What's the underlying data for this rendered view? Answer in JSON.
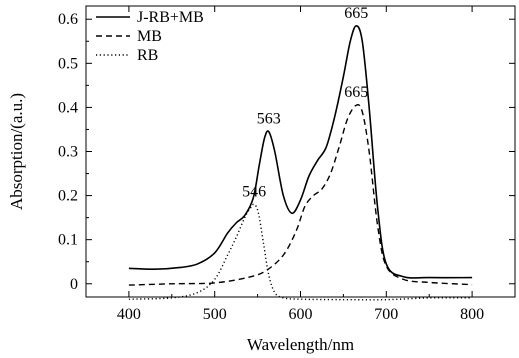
{
  "chart_data": {
    "type": "line",
    "xlabel": "Wavelength/nm",
    "ylabel": "Absorption/(a.u.)",
    "xlim": [
      350,
      850
    ],
    "ylim": [
      -0.03,
      0.63
    ],
    "xticks": [
      400,
      500,
      600,
      700,
      800
    ],
    "yticks": [
      0,
      0.1,
      0.2,
      0.3,
      0.4,
      0.5,
      0.6
    ],
    "xtick_labels": [
      "400",
      "500",
      "600",
      "700",
      "800"
    ],
    "ytick_labels": [
      "0",
      "0.1",
      "0.2",
      "0.3",
      "0.4",
      "0.5",
      "0.6"
    ],
    "grid": false,
    "legend_position": "top-left",
    "series": [
      {
        "name": "J-RB+MB",
        "style": "solid",
        "x": [
          400,
          430,
          460,
          480,
          500,
          515,
          525,
          535,
          545,
          552,
          558,
          563,
          570,
          580,
          590,
          600,
          610,
          620,
          630,
          640,
          650,
          658,
          665,
          672,
          680,
          690,
          700,
          720,
          750,
          800
        ],
        "y": [
          0.035,
          0.033,
          0.037,
          0.045,
          0.07,
          0.115,
          0.138,
          0.155,
          0.195,
          0.27,
          0.33,
          0.345,
          0.3,
          0.2,
          0.16,
          0.19,
          0.245,
          0.28,
          0.31,
          0.38,
          0.47,
          0.55,
          0.585,
          0.55,
          0.4,
          0.17,
          0.045,
          0.016,
          0.014,
          0.014
        ]
      },
      {
        "name": "MB",
        "style": "dashed",
        "x": [
          400,
          450,
          500,
          540,
          560,
          580,
          595,
          605,
          615,
          625,
          635,
          645,
          655,
          665,
          672,
          680,
          690,
          700,
          720,
          750,
          800
        ],
        "y": [
          -0.003,
          0.0,
          0.002,
          0.015,
          0.03,
          0.065,
          0.12,
          0.175,
          0.2,
          0.215,
          0.25,
          0.31,
          0.375,
          0.405,
          0.39,
          0.3,
          0.13,
          0.04,
          0.01,
          0.003,
          -0.002
        ]
      },
      {
        "name": "RB",
        "style": "dotted",
        "x": [
          400,
          450,
          480,
          500,
          515,
          525,
          535,
          541,
          546,
          551,
          557,
          563,
          570,
          580,
          600,
          650,
          700,
          750,
          800
        ],
        "y": [
          -0.035,
          -0.032,
          -0.02,
          0.01,
          0.065,
          0.105,
          0.15,
          0.17,
          0.18,
          0.16,
          0.09,
          0.02,
          -0.02,
          -0.032,
          -0.035,
          -0.036,
          -0.036,
          -0.032,
          -0.032
        ]
      }
    ],
    "annotations": [
      {
        "text": "665",
        "x": 665,
        "y": 0.585
      },
      {
        "text": "563",
        "x": 563,
        "y": 0.345
      },
      {
        "text": "665",
        "x": 665,
        "y": 0.405
      },
      {
        "text": "546",
        "x": 546,
        "y": 0.18
      }
    ]
  }
}
